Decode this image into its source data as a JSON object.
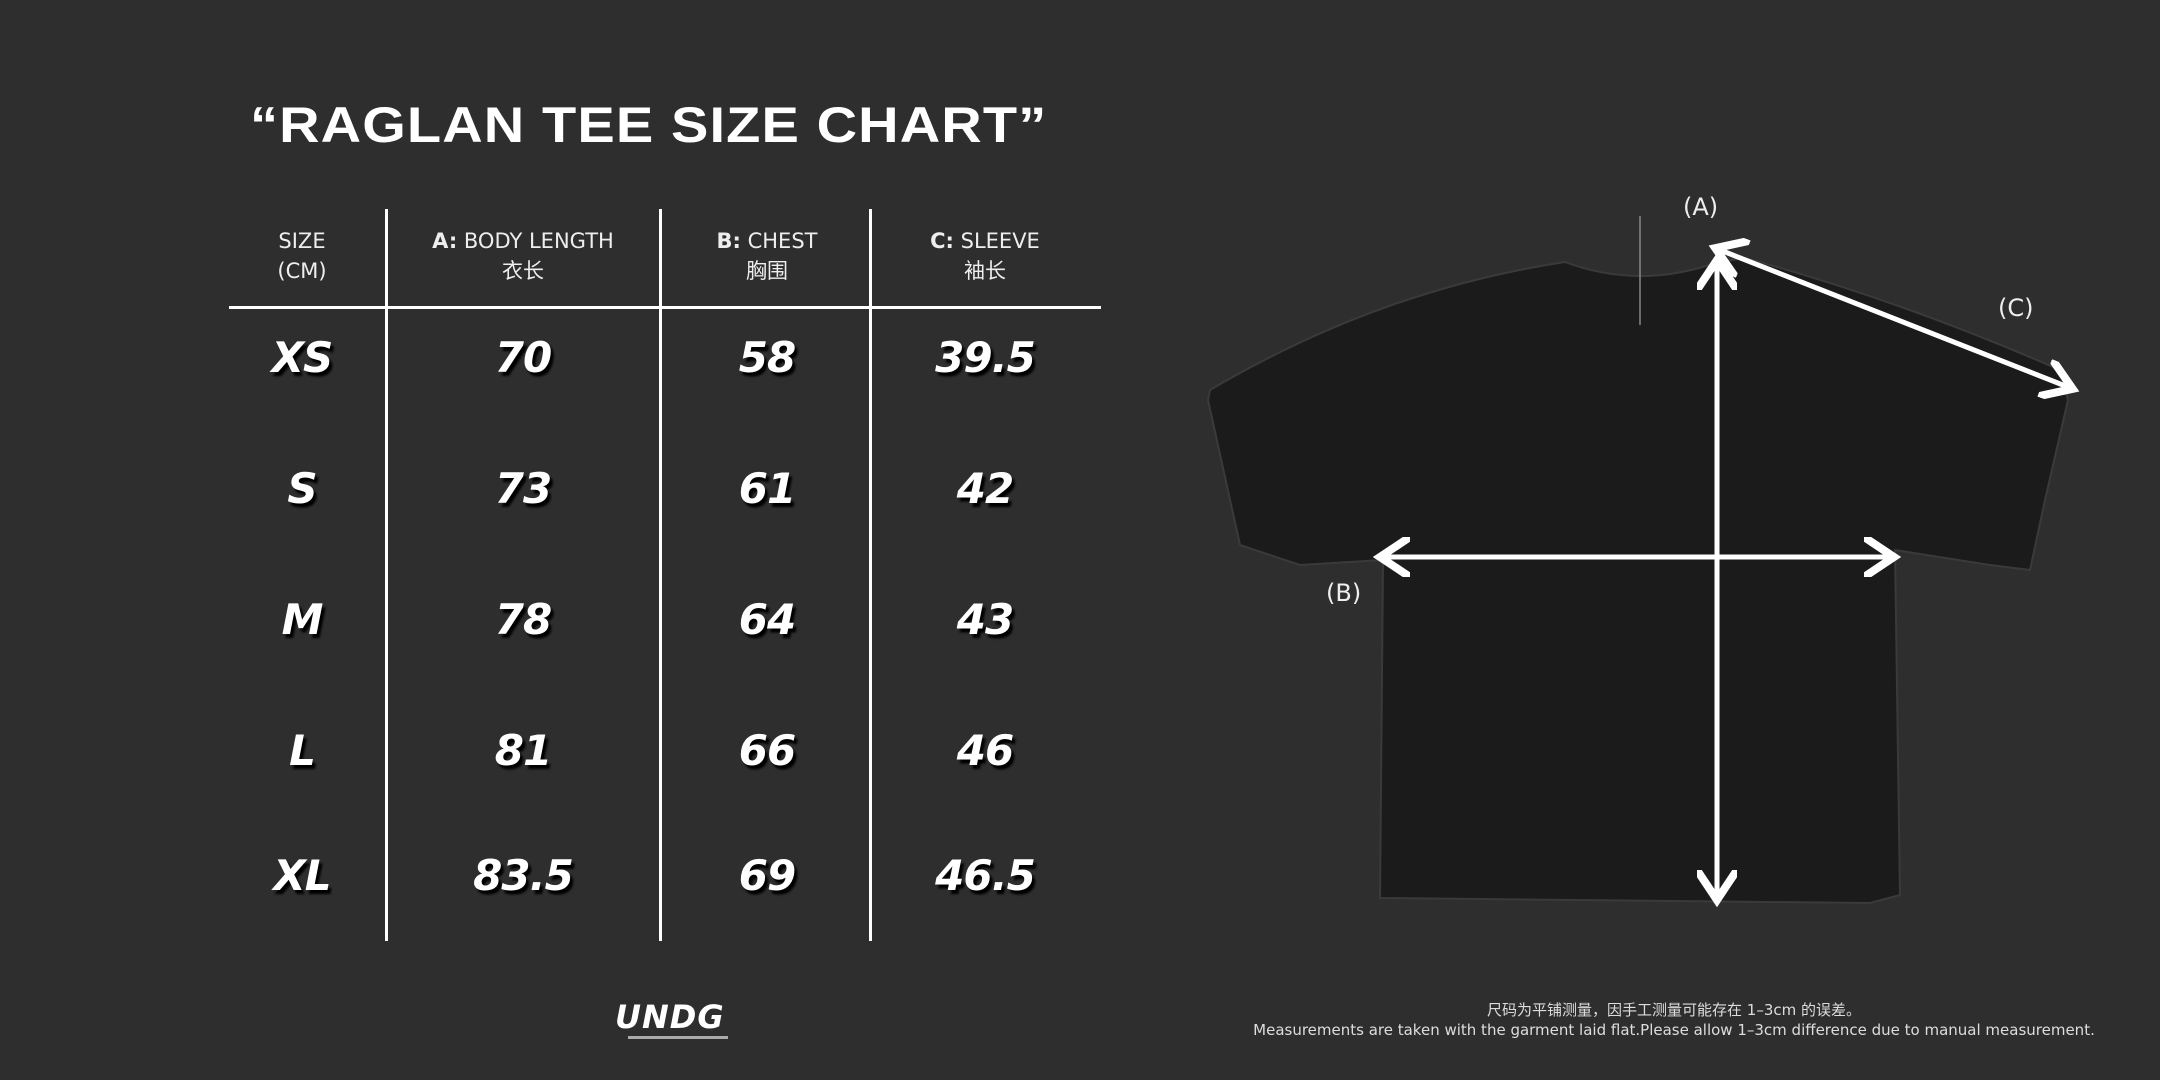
{
  "title": "“RAGLAN TEE SIZE CHART”",
  "table": {
    "headers": [
      {
        "prefix": "",
        "label": "SIZE",
        "sub": "(CM)"
      },
      {
        "prefix": "A:",
        "label": " BODY LENGTH",
        "sub": "衣长"
      },
      {
        "prefix": "B:",
        "label": " CHEST",
        "sub": "胸围"
      },
      {
        "prefix": "C:",
        "label": " SLEEVE",
        "sub": "袖长"
      }
    ],
    "rows": [
      [
        "XS",
        "70",
        "58",
        "39.5"
      ],
      [
        "S",
        "73",
        "61",
        "42"
      ],
      [
        "M",
        "78",
        "64",
        "43"
      ],
      [
        "L",
        "81",
        "66",
        "46"
      ],
      [
        "XL",
        "83.5",
        "69",
        "46.5"
      ]
    ]
  },
  "diagram": {
    "label_a": "(A)",
    "label_b": "(B)",
    "label_c": "(C)"
  },
  "logo": "UNDG",
  "notes": {
    "cn": "尺码为平铺测量，因手工测量可能存在 1–3cm 的误差。",
    "en": "Measurements are taken with the garment laid flat.Please allow 1–3cm difference due to manual measurement."
  },
  "colors": {
    "background": "#2e2e2e",
    "text": "#ffffff",
    "shirt": "#1a1a1a"
  }
}
